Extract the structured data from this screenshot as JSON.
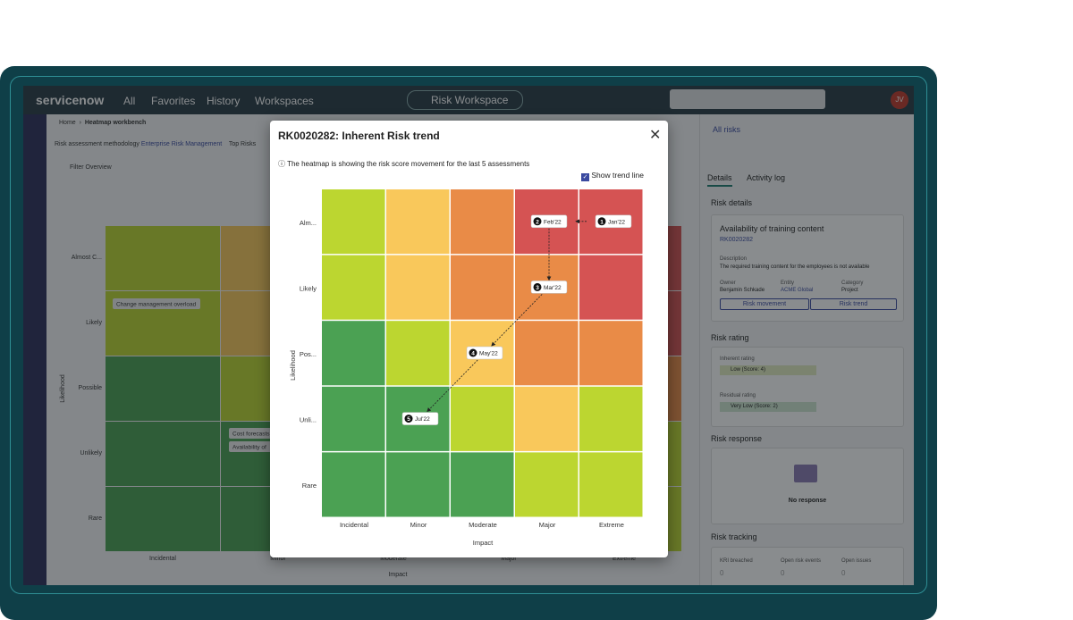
{
  "nav": {
    "logo": "servicenow",
    "items": [
      "All",
      "Favorites",
      "History",
      "Workspaces"
    ],
    "workspace": "Risk Workspace",
    "avatar": "JV"
  },
  "breadcrumb": [
    "Home",
    "Heatmap workbench"
  ],
  "toolbar": {
    "methodology_label": "Risk assessment methodology",
    "methodology_value": "Enterprise Risk Management",
    "top_risks": "Top Risks",
    "filter_overview": "Filter Overview"
  },
  "background_heatmap": {
    "rows": [
      "Almost C...",
      "Likely",
      "Possible",
      "Unlikely",
      "Rare"
    ],
    "columns": [
      "Incidental",
      "Minor",
      "Moderate",
      "Major",
      "Extreme"
    ],
    "x_label": "Impact",
    "y_label": "Likelihood",
    "chips": [
      "Change management overload",
      "Cost forecasts",
      "Availability of"
    ]
  },
  "modal": {
    "title": "RK0020282: Inherent Risk trend",
    "info": "The heatmap is showing the risk score movement for the last 5 assessments",
    "checkbox": "Show trend line",
    "rows": [
      "Alm...",
      "Likely",
      "Pos...",
      "Unli...",
      "Rare"
    ],
    "columns": [
      "Incidental",
      "Minor",
      "Moderate",
      "Major",
      "Extreme"
    ],
    "x_label": "Impact",
    "y_label": "Likelihood",
    "cell_colors": [
      [
        "#bcd630",
        "#f9c85b",
        "#e98b47",
        "#d55353",
        "#d55353"
      ],
      [
        "#bcd630",
        "#f9c85b",
        "#e98b47",
        "#e98b47",
        "#d55353"
      ],
      [
        "#4ba153",
        "#bcd630",
        "#f9c85b",
        "#e98b47",
        "#e98b47"
      ],
      [
        "#4ba153",
        "#4ba153",
        "#bcd630",
        "#f9c85b",
        "#bcd630"
      ],
      [
        "#4ba153",
        "#4ba153",
        "#4ba153",
        "#bcd630",
        "#bcd630"
      ]
    ],
    "points": [
      {
        "step": 1,
        "label": "Jan'22",
        "likelihood": "Alm...",
        "impact": "Extreme"
      },
      {
        "step": 2,
        "label": "Feb'22",
        "likelihood": "Alm...",
        "impact": "Major"
      },
      {
        "step": 3,
        "label": "Mar'22",
        "likelihood": "Likely",
        "impact": "Major"
      },
      {
        "step": 4,
        "label": "May'22",
        "likelihood": "Pos...",
        "impact": "Moderate"
      },
      {
        "step": 5,
        "label": "Jul'22",
        "likelihood": "Unli...",
        "impact": "Minor"
      }
    ]
  },
  "right_panel": {
    "back": "All risks",
    "tabs": [
      "Details",
      "Activity log"
    ],
    "details_heading": "Risk details",
    "risk_name": "Availability of training content",
    "risk_id": "RK0020282",
    "description_label": "Description",
    "description": "The required training content for the employees is not available",
    "fields": [
      {
        "label": "Owner",
        "value": "Benjamin Schkade"
      },
      {
        "label": "Entity",
        "value": "ACME Global"
      },
      {
        "label": "Category",
        "value": "Project"
      }
    ],
    "buttons": [
      "Risk movement",
      "Risk trend"
    ],
    "rating_heading": "Risk rating",
    "inherent_label": "Inherent rating",
    "inherent_value": "Low (Score: 4)",
    "residual_label": "Residual rating",
    "residual_value": "Very Low (Score: 2)",
    "response_heading": "Risk response",
    "response_value": "No response",
    "tracking_heading": "Risk tracking",
    "tracking": [
      {
        "label": "KRI breached",
        "value": 0
      },
      {
        "label": "Open risk events",
        "value": 0
      },
      {
        "label": "Open issues",
        "value": 0
      }
    ]
  }
}
